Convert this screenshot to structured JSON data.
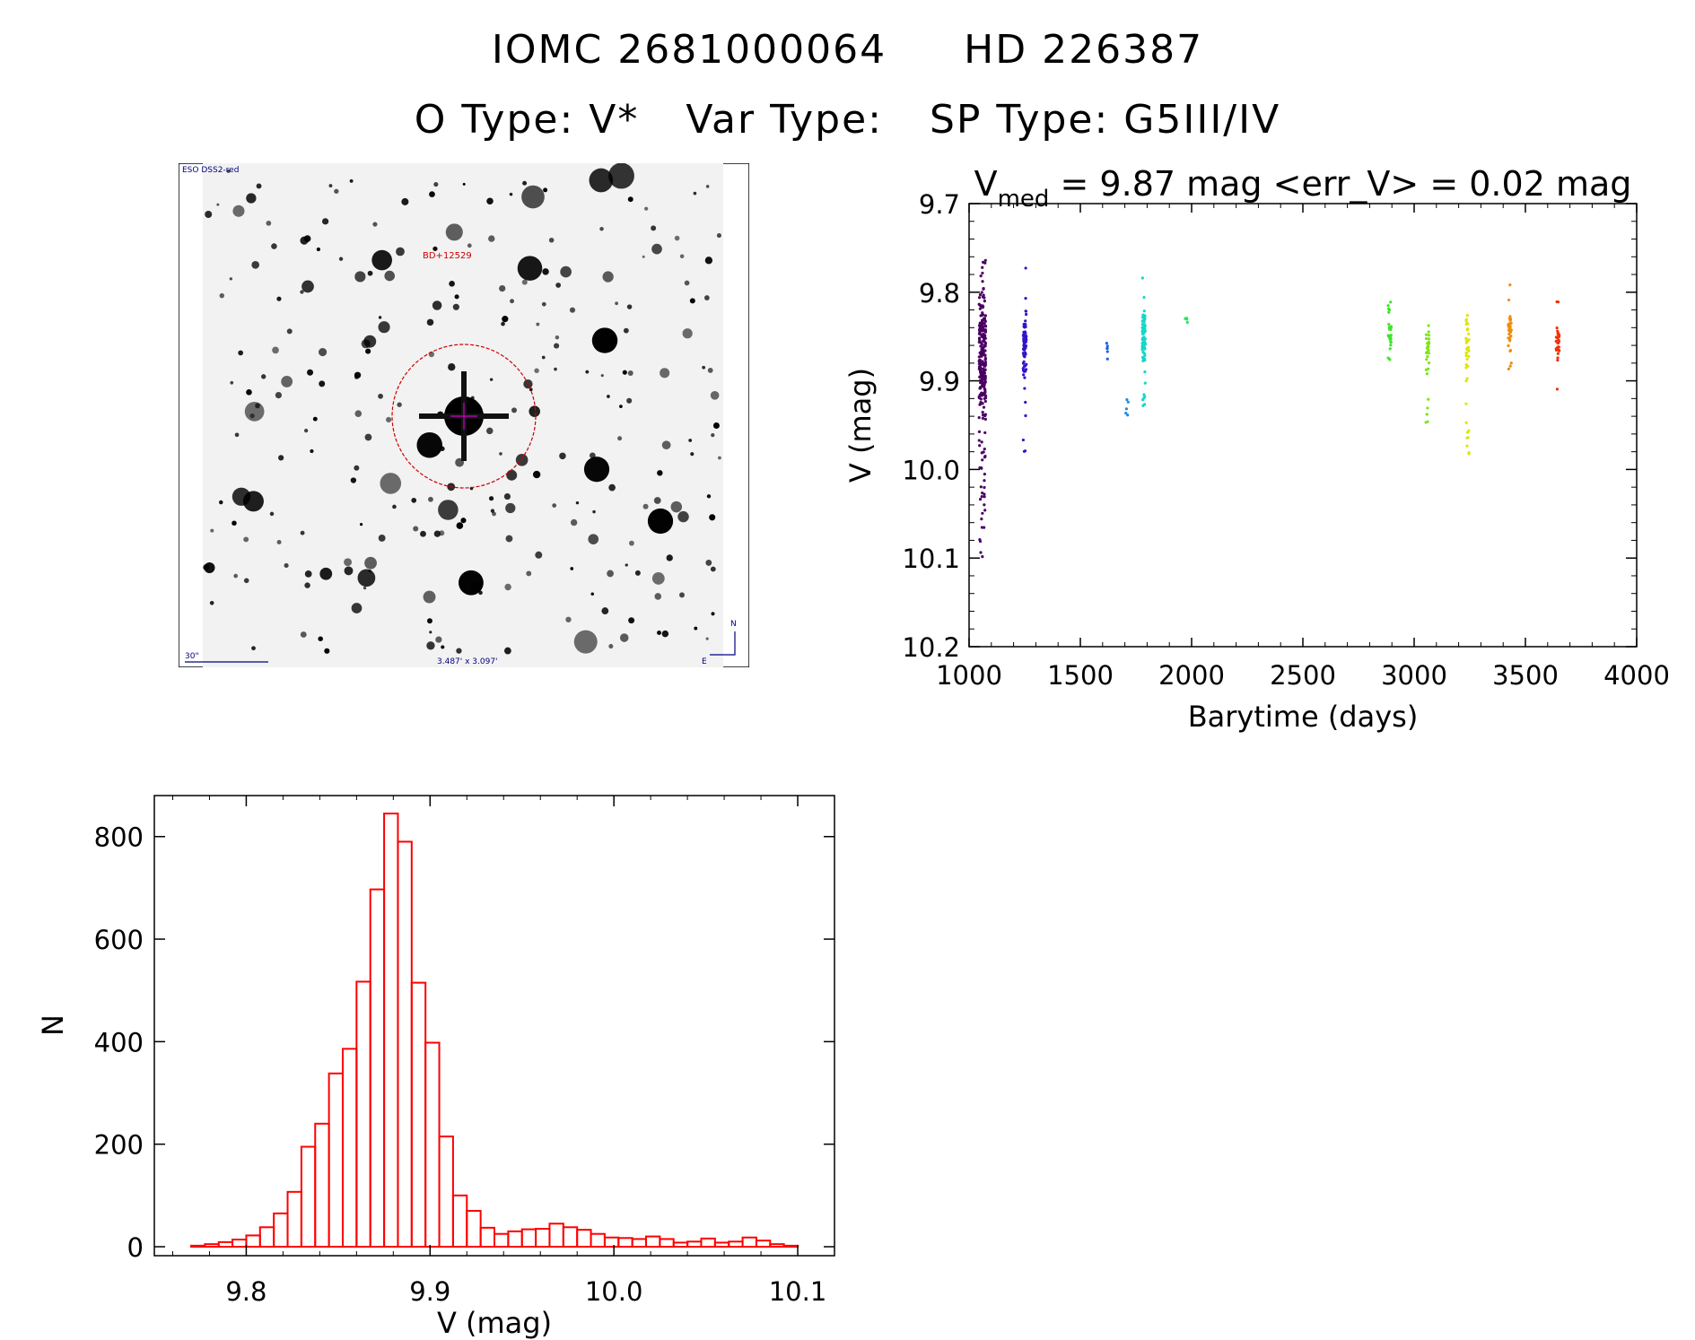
{
  "title_line1": {
    "id1": "IOMC 2681000064",
    "id2": "HD 226387"
  },
  "title_line2": {
    "otype": "O Type: V*",
    "vartype": "Var Type:",
    "sptype": "SP Type: G5III/IV"
  },
  "finder": {
    "survey": "ESO DSS2-red",
    "label": "BD+12529",
    "scale": "30\"",
    "fov": "3.487' x 3.097'",
    "north": "N",
    "east": "E",
    "colors": {
      "frame": "#000080",
      "label": "#cc0000",
      "circle": "#cc0000",
      "cross": "#cc00cc"
    }
  },
  "chart_data": [
    {
      "type": "scatter",
      "title_parts": {
        "v": "V",
        "sub": "med",
        "rest": " = 9.87 mag <err_V> = 0.02 mag"
      },
      "xlabel": "Barytime (days)",
      "ylabel": "V (mag)",
      "xlim": [
        1000,
        4000
      ],
      "ylim": [
        10.2,
        9.7
      ],
      "xticks": [
        1000,
        1500,
        2000,
        2500,
        3000,
        3500,
        4000
      ],
      "xtick_labels": [
        "1000",
        "1500",
        "2000",
        "2500",
        "3000",
        "3500",
        "4000"
      ],
      "yticks": [
        9.7,
        9.8,
        9.9,
        10.0,
        10.1,
        10.2
      ],
      "ytick_labels": [
        "9.7",
        "9.8",
        "9.9",
        "10.0",
        "10.1",
        "10.2"
      ],
      "groups": [
        {
          "x": 1060,
          "ymin": 9.76,
          "ymax": 10.1,
          "center": 9.87,
          "n": 260,
          "color": "#4b0063"
        },
        {
          "x": 1250,
          "ymin": 9.77,
          "ymax": 9.99,
          "center": 9.86,
          "n": 70,
          "color": "#3314c8"
        },
        {
          "x": 1625,
          "ymin": 9.84,
          "ymax": 9.89,
          "center": 9.86,
          "n": 6,
          "color": "#1e62e6"
        },
        {
          "x": 1710,
          "ymin": 9.92,
          "ymax": 9.95,
          "center": 9.935,
          "n": 5,
          "color": "#1e8ce6"
        },
        {
          "x": 1785,
          "ymin": 9.77,
          "ymax": 9.93,
          "center": 9.85,
          "n": 80,
          "color": "#14d7c8"
        },
        {
          "x": 1975,
          "ymin": 9.825,
          "ymax": 9.835,
          "center": 9.83,
          "n": 5,
          "color": "#28e660"
        },
        {
          "x": 2890,
          "ymin": 9.81,
          "ymax": 9.89,
          "center": 9.85,
          "n": 25,
          "color": "#3ce628"
        },
        {
          "x": 3060,
          "ymin": 9.81,
          "ymax": 9.95,
          "center": 9.86,
          "n": 30,
          "color": "#7de614"
        },
        {
          "x": 3240,
          "ymin": 9.81,
          "ymax": 9.99,
          "center": 9.855,
          "n": 40,
          "color": "#dce60a"
        },
        {
          "x": 3430,
          "ymin": 9.78,
          "ymax": 9.89,
          "center": 9.84,
          "n": 35,
          "color": "#f08c0a"
        },
        {
          "x": 3645,
          "ymin": 9.8,
          "ymax": 9.92,
          "center": 9.86,
          "n": 30,
          "color": "#f0320a"
        }
      ]
    },
    {
      "type": "bar",
      "xlabel": "V (mag)",
      "ylabel": "N",
      "xlim": [
        9.75,
        10.12
      ],
      "ylim": [
        0,
        880
      ],
      "bin_start": 9.77,
      "bin_width": 0.0075,
      "values": [
        2,
        5,
        9,
        14,
        22,
        38,
        65,
        107,
        195,
        240,
        338,
        386,
        517,
        697,
        845,
        790,
        515,
        398,
        215,
        100,
        70,
        37,
        25,
        30,
        34,
        35,
        45,
        38,
        33,
        25,
        18,
        17,
        15,
        20,
        15,
        8,
        10,
        16,
        8,
        10,
        18,
        12,
        5,
        2
      ],
      "xticks": [
        9.8,
        9.9,
        10.0,
        10.1
      ],
      "xtick_labels": [
        "9.8",
        "9.9",
        "10.0",
        "10.1"
      ],
      "yticks": [
        0,
        200,
        400,
        600,
        800
      ],
      "ytick_labels": [
        "0",
        "200",
        "400",
        "600",
        "800"
      ],
      "color": "#ff0000"
    }
  ]
}
